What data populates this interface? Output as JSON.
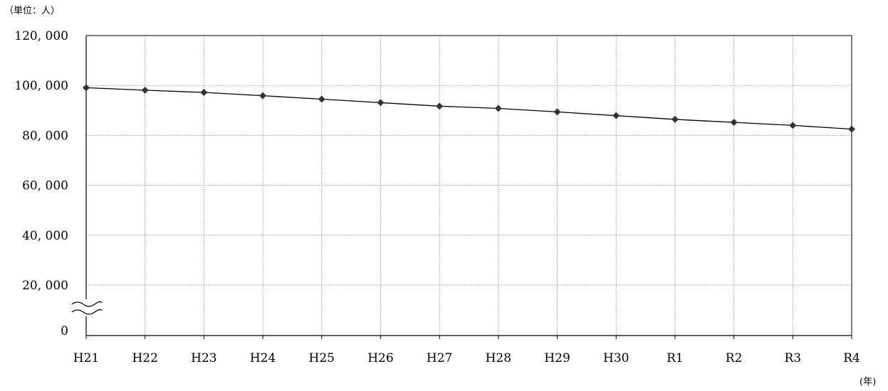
{
  "chart_data": {
    "type": "line",
    "unit_label": "（単位：人）",
    "x_unit_label": "(年)",
    "categories": [
      "H21",
      "H22",
      "H23",
      "H24",
      "H25",
      "H26",
      "H27",
      "H28",
      "H29",
      "H30",
      "R1",
      "R2",
      "R3",
      "R4"
    ],
    "series": [
      {
        "values": [
          99100,
          98100,
          97200,
          95900,
          94500,
          93100,
          91700,
          90800,
          89400,
          87900,
          86400,
          85200,
          84000,
          82500
        ]
      }
    ],
    "yticks": [
      "0",
      "20, 000",
      "40, 000",
      "60, 000",
      "80, 000",
      "100, 000",
      "120, 000"
    ],
    "ylim": [
      0,
      120000
    ],
    "axis_break": "between 0 and 20,000",
    "grid": true,
    "marker": "diamond",
    "line_color": "#000000",
    "marker_color": "#333333"
  }
}
